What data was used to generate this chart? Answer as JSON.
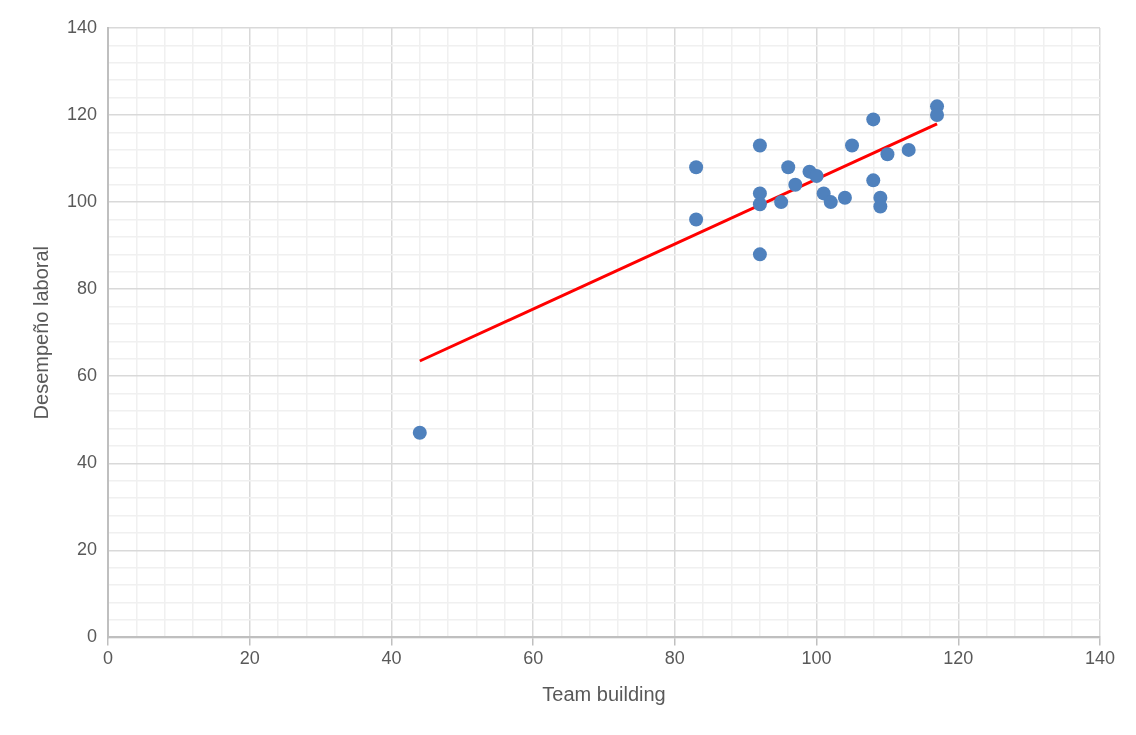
{
  "chart_data": {
    "type": "scatter",
    "xlabel": "Team building",
    "ylabel": "Desempeño laboral",
    "xlim": [
      0,
      140
    ],
    "ylim": [
      0,
      140
    ],
    "xticks": [
      0,
      {
        "value": 4,
        "label": null
      },
      {
        "value": 8,
        "label": null
      },
      {
        "value": 12,
        "label": null
      },
      {
        "value": 16,
        "label": null
      },
      20,
      {
        "value": 24,
        "label": null
      },
      {
        "value": 28,
        "label": null
      },
      {
        "value": 32,
        "label": null
      },
      {
        "value": 36,
        "label": null
      },
      40,
      {
        "value": 44,
        "label": null
      },
      {
        "value": 48,
        "label": null
      },
      {
        "value": 52,
        "label": null
      },
      {
        "value": 56,
        "label": null
      },
      60,
      {
        "value": 64,
        "label": null
      },
      {
        "value": 68,
        "label": null
      },
      {
        "value": 72,
        "label": null
      },
      {
        "value": 76,
        "label": null
      },
      80,
      {
        "value": 84,
        "label": null
      },
      {
        "value": 88,
        "label": null
      },
      {
        "value": 92,
        "label": null
      },
      {
        "value": 96,
        "label": null
      },
      100,
      {
        "value": 104,
        "label": null
      },
      {
        "value": 108,
        "label": null
      },
      {
        "value": 112,
        "label": null
      },
      {
        "value": 116,
        "label": null
      },
      120,
      {
        "value": 124,
        "label": null
      },
      {
        "value": 128,
        "label": null
      },
      {
        "value": 132,
        "label": null
      },
      {
        "value": 136,
        "label": null
      },
      140
    ],
    "yticks": [
      0,
      {
        "value": 4,
        "label": null
      },
      {
        "value": 8,
        "label": null
      },
      {
        "value": 12,
        "label": null
      },
      {
        "value": 16,
        "label": null
      },
      20,
      {
        "value": 24,
        "label": null
      },
      {
        "value": 28,
        "label": null
      },
      {
        "value": 32,
        "label": null
      },
      {
        "value": 36,
        "label": null
      },
      40,
      {
        "value": 44,
        "label": null
      },
      {
        "value": 48,
        "label": null
      },
      {
        "value": 52,
        "label": null
      },
      {
        "value": 56,
        "label": null
      },
      60,
      {
        "value": 64,
        "label": null
      },
      {
        "value": 68,
        "label": null
      },
      {
        "value": 72,
        "label": null
      },
      {
        "value": 76,
        "label": null
      },
      80,
      {
        "value": 84,
        "label": null
      },
      {
        "value": 88,
        "label": null
      },
      {
        "value": 92,
        "label": null
      },
      {
        "value": 96,
        "label": null
      },
      100,
      {
        "value": 104,
        "label": null
      },
      {
        "value": 108,
        "label": null
      },
      {
        "value": 112,
        "label": null
      },
      {
        "value": 116,
        "label": null
      },
      120,
      {
        "value": 124,
        "label": null
      },
      {
        "value": 128,
        "label": null
      },
      {
        "value": 132,
        "label": null
      },
      {
        "value": 136,
        "label": null
      },
      140
    ],
    "grid": true,
    "marker": "circle",
    "series": [
      {
        "color": "#4f81bd",
        "x": [
          44,
          83,
          83,
          92,
          92,
          92,
          92,
          95,
          96,
          97,
          99,
          100,
          101,
          102,
          104,
          105,
          108,
          108,
          109,
          109,
          110,
          113,
          117,
          117
        ],
        "values": [
          47,
          108,
          96,
          113,
          102,
          99.5,
          88,
          100,
          108,
          104,
          107,
          106,
          102,
          100,
          101,
          113,
          119,
          105,
          101,
          99,
          111,
          112,
          122,
          120
        ]
      },
      {
        "type": "line",
        "color": "#ff0000",
        "marker": "none",
        "x": [
          44,
          117
        ],
        "values": [
          63.5,
          118
        ]
      }
    ]
  }
}
